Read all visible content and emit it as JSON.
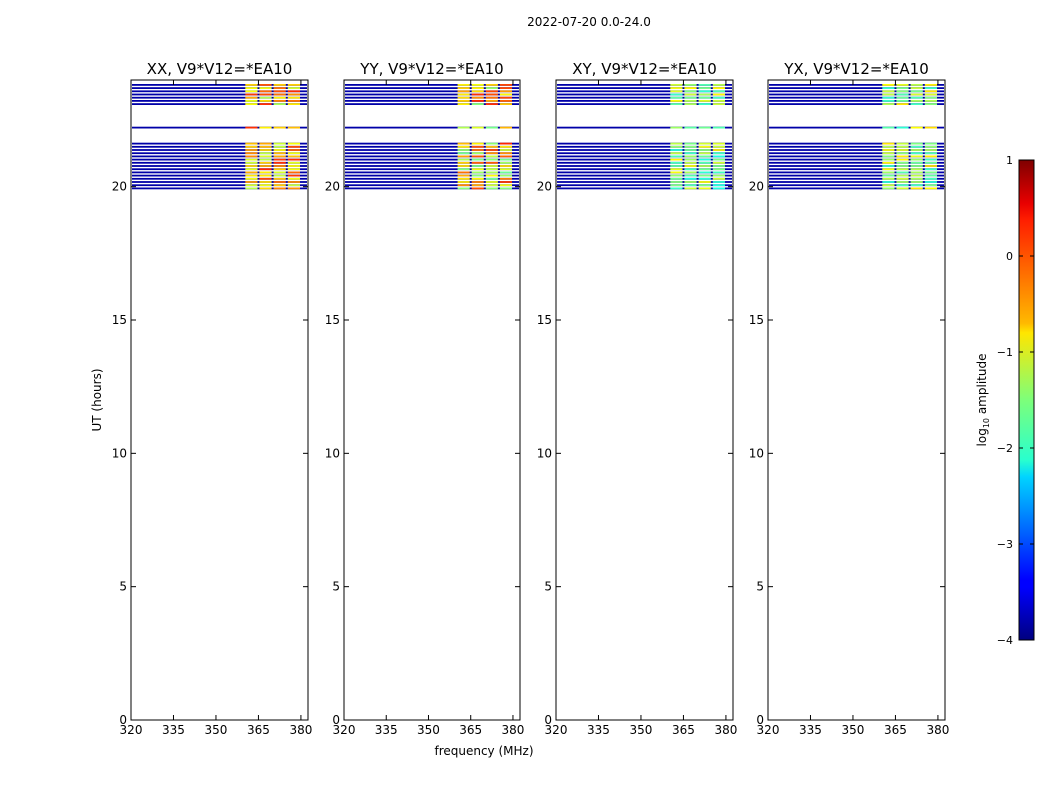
{
  "figure": {
    "suptitle": "2022-07-20 0.0-24.0"
  },
  "chart_data": [
    {
      "type": "heatmap",
      "title": "XX, V9*V12=*EA10",
      "xlabel": "",
      "ylabel": "UT (hours)",
      "xlim": [
        320,
        382.5
      ],
      "ylim": [
        0,
        24
      ],
      "xticks": [
        320,
        335,
        350,
        365,
        380
      ],
      "yticks": [
        0,
        5,
        10,
        15,
        20
      ],
      "data_time_ranges_hours": [
        [
          19.95,
          21.65
        ],
        [
          22.15,
          22.25
        ],
        [
          23.05,
          23.85
        ]
      ],
      "bright_freq_blocks_mhz": [
        [
          360,
          365
        ],
        [
          365,
          370
        ],
        [
          370,
          375
        ],
        [
          375,
          380
        ]
      ],
      "background_log10_amplitude": -3.8,
      "block_log10_amplitude_range": [
        -1.3,
        0.2
      ]
    },
    {
      "type": "heatmap",
      "title": "YY, V9*V12=*EA10",
      "xlabel": "frequency (MHz)",
      "ylabel": "",
      "xlim": [
        320,
        382.5
      ],
      "ylim": [
        0,
        24
      ],
      "xticks": [
        320,
        335,
        350,
        365,
        380
      ],
      "yticks": [
        0,
        5,
        10,
        15,
        20
      ],
      "data_time_ranges_hours": [
        [
          19.95,
          21.65
        ],
        [
          22.15,
          22.25
        ],
        [
          23.05,
          23.85
        ]
      ],
      "bright_freq_blocks_mhz": [
        [
          360,
          365
        ],
        [
          365,
          370
        ],
        [
          370,
          375
        ],
        [
          375,
          380
        ]
      ],
      "background_log10_amplitude": -3.8,
      "block_log10_amplitude_range": [
        -1.6,
        0.2
      ]
    },
    {
      "type": "heatmap",
      "title": "XY, V9*V12=*EA10",
      "xlabel": "",
      "ylabel": "",
      "xlim": [
        320,
        382.5
      ],
      "ylim": [
        0,
        24
      ],
      "xticks": [
        320,
        335,
        350,
        365,
        380
      ],
      "yticks": [
        0,
        5,
        10,
        15,
        20
      ],
      "data_time_ranges_hours": [
        [
          19.95,
          21.65
        ],
        [
          22.15,
          22.25
        ],
        [
          23.05,
          23.85
        ]
      ],
      "bright_freq_blocks_mhz": [
        [
          360,
          365
        ],
        [
          365,
          370
        ],
        [
          370,
          375
        ],
        [
          375,
          380
        ]
      ],
      "background_log10_amplitude": -3.8,
      "block_log10_amplitude_range": [
        -2.0,
        -0.8
      ]
    },
    {
      "type": "heatmap",
      "title": "YX, V9*V12=*EA10",
      "xlabel": "",
      "ylabel": "",
      "xlim": [
        320,
        382.5
      ],
      "ylim": [
        0,
        24
      ],
      "xticks": [
        320,
        335,
        350,
        365,
        380
      ],
      "yticks": [
        0,
        5,
        10,
        15,
        20
      ],
      "data_time_ranges_hours": [
        [
          19.95,
          21.65
        ],
        [
          22.15,
          22.25
        ],
        [
          23.05,
          23.85
        ]
      ],
      "bright_freq_blocks_mhz": [
        [
          360,
          365
        ],
        [
          365,
          370
        ],
        [
          370,
          375
        ],
        [
          375,
          380
        ]
      ],
      "background_log10_amplitude": -3.8,
      "block_log10_amplitude_range": [
        -1.9,
        -0.7
      ]
    }
  ],
  "colorbar": {
    "label": "log",
    "label_sub": "10",
    "label_rest": " amplitude",
    "range": [
      -4,
      1
    ],
    "ticks": [
      1,
      0,
      -1,
      -2,
      -3,
      -4
    ],
    "tick_labels": [
      "1",
      "0",
      "−1",
      "−2",
      "−3",
      "−4"
    ],
    "colormap": "jet"
  }
}
